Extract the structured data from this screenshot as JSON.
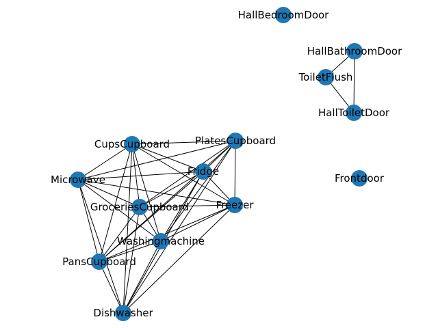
{
  "graph": {
    "node_color": "#1f77b4",
    "edge_color": "#000000",
    "label_color": "#000000",
    "nodes": [
      {
        "id": "HallBedroomDoor",
        "label": "HallBedroomDoor"
      },
      {
        "id": "HallBathroomDoor",
        "label": "HallBathroomDoor"
      },
      {
        "id": "ToiletFlush",
        "label": "ToiletFlush"
      },
      {
        "id": "HallToiletDoor",
        "label": "HallToiletDoor"
      },
      {
        "id": "Frontdoor",
        "label": "Frontdoor"
      },
      {
        "id": "CupsCupboard",
        "label": "CupsCupboard"
      },
      {
        "id": "PlatesCupboard",
        "label": "PlatesCupboard"
      },
      {
        "id": "Fridge",
        "label": "Fridge"
      },
      {
        "id": "Microwave",
        "label": "Microwave"
      },
      {
        "id": "GroceriesCupboard",
        "label": "GroceriesCupboard"
      },
      {
        "id": "Freezer",
        "label": "Freezer"
      },
      {
        "id": "Washingmachine",
        "label": "Washingmachine"
      },
      {
        "id": "PansCupboard",
        "label": "PansCupboard"
      },
      {
        "id": "Dishwasher",
        "label": "Dishwasher"
      }
    ],
    "edges": [
      [
        "HallBathroomDoor",
        "ToiletFlush"
      ],
      [
        "HallBathroomDoor",
        "HallToiletDoor"
      ],
      [
        "ToiletFlush",
        "HallToiletDoor"
      ],
      [
        "CupsCupboard",
        "PlatesCupboard"
      ],
      [
        "CupsCupboard",
        "Microwave"
      ],
      [
        "CupsCupboard",
        "Fridge"
      ],
      [
        "CupsCupboard",
        "GroceriesCupboard"
      ],
      [
        "CupsCupboard",
        "Freezer"
      ],
      [
        "CupsCupboard",
        "Washingmachine"
      ],
      [
        "CupsCupboard",
        "PansCupboard"
      ],
      [
        "CupsCupboard",
        "Dishwasher"
      ],
      [
        "PlatesCupboard",
        "Microwave"
      ],
      [
        "PlatesCupboard",
        "Fridge"
      ],
      [
        "PlatesCupboard",
        "GroceriesCupboard"
      ],
      [
        "PlatesCupboard",
        "Freezer"
      ],
      [
        "PlatesCupboard",
        "Washingmachine"
      ],
      [
        "PlatesCupboard",
        "PansCupboard"
      ],
      [
        "PlatesCupboard",
        "Dishwasher"
      ],
      [
        "Fridge",
        "Microwave"
      ],
      [
        "Fridge",
        "GroceriesCupboard"
      ],
      [
        "Fridge",
        "Freezer"
      ],
      [
        "Fridge",
        "Washingmachine"
      ],
      [
        "Fridge",
        "PansCupboard"
      ],
      [
        "Fridge",
        "Dishwasher"
      ],
      [
        "Microwave",
        "GroceriesCupboard"
      ],
      [
        "Microwave",
        "Freezer"
      ],
      [
        "Microwave",
        "Washingmachine"
      ],
      [
        "Microwave",
        "PansCupboard"
      ],
      [
        "Microwave",
        "Dishwasher"
      ],
      [
        "GroceriesCupboard",
        "Freezer"
      ],
      [
        "GroceriesCupboard",
        "Washingmachine"
      ],
      [
        "GroceriesCupboard",
        "PansCupboard"
      ],
      [
        "GroceriesCupboard",
        "Dishwasher"
      ],
      [
        "Freezer",
        "Washingmachine"
      ],
      [
        "Freezer",
        "PansCupboard"
      ],
      [
        "Freezer",
        "Dishwasher"
      ],
      [
        "Washingmachine",
        "PansCupboard"
      ],
      [
        "Washingmachine",
        "Dishwasher"
      ],
      [
        "PansCupboard",
        "Dishwasher"
      ]
    ]
  }
}
